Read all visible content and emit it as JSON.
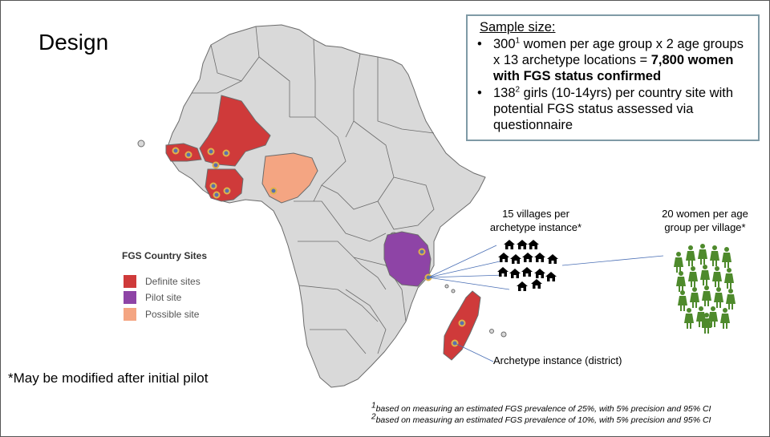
{
  "title": "Design",
  "sample_size": {
    "heading": "Sample size:",
    "bullet1": {
      "pre": "300",
      "sup": "1",
      "mid": " women per age group x 2 age groups x 13 archetype locations = ",
      "bold": "7,800 women with FGS status confirmed"
    },
    "bullet2": {
      "pre": "138",
      "sup": "2",
      "rest": " girls (10-14yrs) per country site with potential FGS status assessed via questionnaire"
    }
  },
  "legend": {
    "title": "FGS Country Sites",
    "items": [
      {
        "label": "Definite sites",
        "color": "#cf3a3a"
      },
      {
        "label": "Pilot site",
        "color": "#8e44a6"
      },
      {
        "label": "Possible site",
        "color": "#f4a582"
      }
    ]
  },
  "labels": {
    "villages_line1": "15 villages per",
    "villages_line2": "archetype instance*",
    "women_line1": "20 women per age",
    "women_line2": "group per village*",
    "archetype": "Archetype instance (district)"
  },
  "note": "*May be modified after initial pilot",
  "footnotes": [
    {
      "sup": "1",
      "text": "based on measuring an estimated FGS prevalence of 25%, with 5% precision and 95% CI"
    },
    {
      "sup": "2",
      "text": "based on measuring an estimated FGS prevalence of 10%, with 5% precision and 95% CI"
    }
  ],
  "colors": {
    "land": "#d9d9d9",
    "border": "#6b6b6b",
    "definite": "#cf3a3a",
    "pilot": "#8e44a6",
    "possible": "#f4a582",
    "marker_ring": "#e0b24a",
    "marker_fill": "#5b6fae",
    "women": "#4e8a2c",
    "houses": "#000000",
    "connector": "#4a6fb5"
  },
  "icons": {
    "houses": "house-icon",
    "women": "woman-icon",
    "site_marker": "site-marker-icon"
  }
}
